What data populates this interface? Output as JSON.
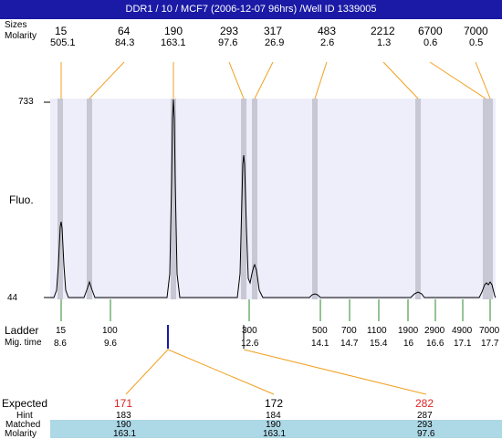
{
  "window": {
    "title": "DDR1 / 10 / MCF7 (2006-12-07 96hrs) /Well ID 1339005"
  },
  "peaks": {
    "row_label_1": "Sizes",
    "row_label_2": "Molarity",
    "items": [
      {
        "size": "15",
        "molarity": "505.1"
      },
      {
        "size": "64",
        "molarity": "84.3"
      },
      {
        "size": "190",
        "molarity": "163.1"
      },
      {
        "size": "293",
        "molarity": "97.6"
      },
      {
        "size": "317",
        "molarity": "26.9"
      },
      {
        "size": "483",
        "molarity": "2.6"
      },
      {
        "size": "2212",
        "molarity": "1.3"
      },
      {
        "size": "6700",
        "molarity": "0.6"
      },
      {
        "size": "7000",
        "molarity": "0.5"
      }
    ]
  },
  "electropherogram": {
    "y_axis_label": "Fluo.",
    "y_max_label": "733",
    "y_min_label": "44"
  },
  "ladder": {
    "row_label_1": "Ladder",
    "row_label_2": "Mig. time",
    "items": [
      {
        "size": "15",
        "time": "8.6"
      },
      {
        "size": "100",
        "time": "9.6"
      },
      {
        "size": "300",
        "time": "12.6"
      },
      {
        "size": "500",
        "time": "14.1"
      },
      {
        "size": "700",
        "time": "14.7"
      },
      {
        "size": "1100",
        "time": "15.4"
      },
      {
        "size": "1900",
        "time": "16"
      },
      {
        "size": "2900",
        "time": "16.6"
      },
      {
        "size": "4900",
        "time": "17.1"
      },
      {
        "size": "7000",
        "time": "17.7"
      }
    ]
  },
  "expected": {
    "labels": [
      "Expected",
      "Hint",
      "Matched",
      "Molarity"
    ],
    "columns": [
      {
        "expected": "171",
        "hint": "183",
        "matched": "190",
        "molarity": "163.1"
      },
      {
        "expected": "172",
        "hint": "184",
        "matched": "190",
        "molarity": "163.1"
      },
      {
        "expected": "282",
        "hint": "287",
        "matched": "293",
        "molarity": "97.6"
      }
    ]
  },
  "colors": {
    "title_bar": "#1a1aa6",
    "plot_bg": "#eeeefa",
    "peak_band": "#c8c8d4",
    "connector": "#f0a020",
    "ladder_tick": "#2a8a2a",
    "marker": "#1a1aa6",
    "mismatch": "#e02020",
    "matched_row_bg": "#add8e6"
  }
}
